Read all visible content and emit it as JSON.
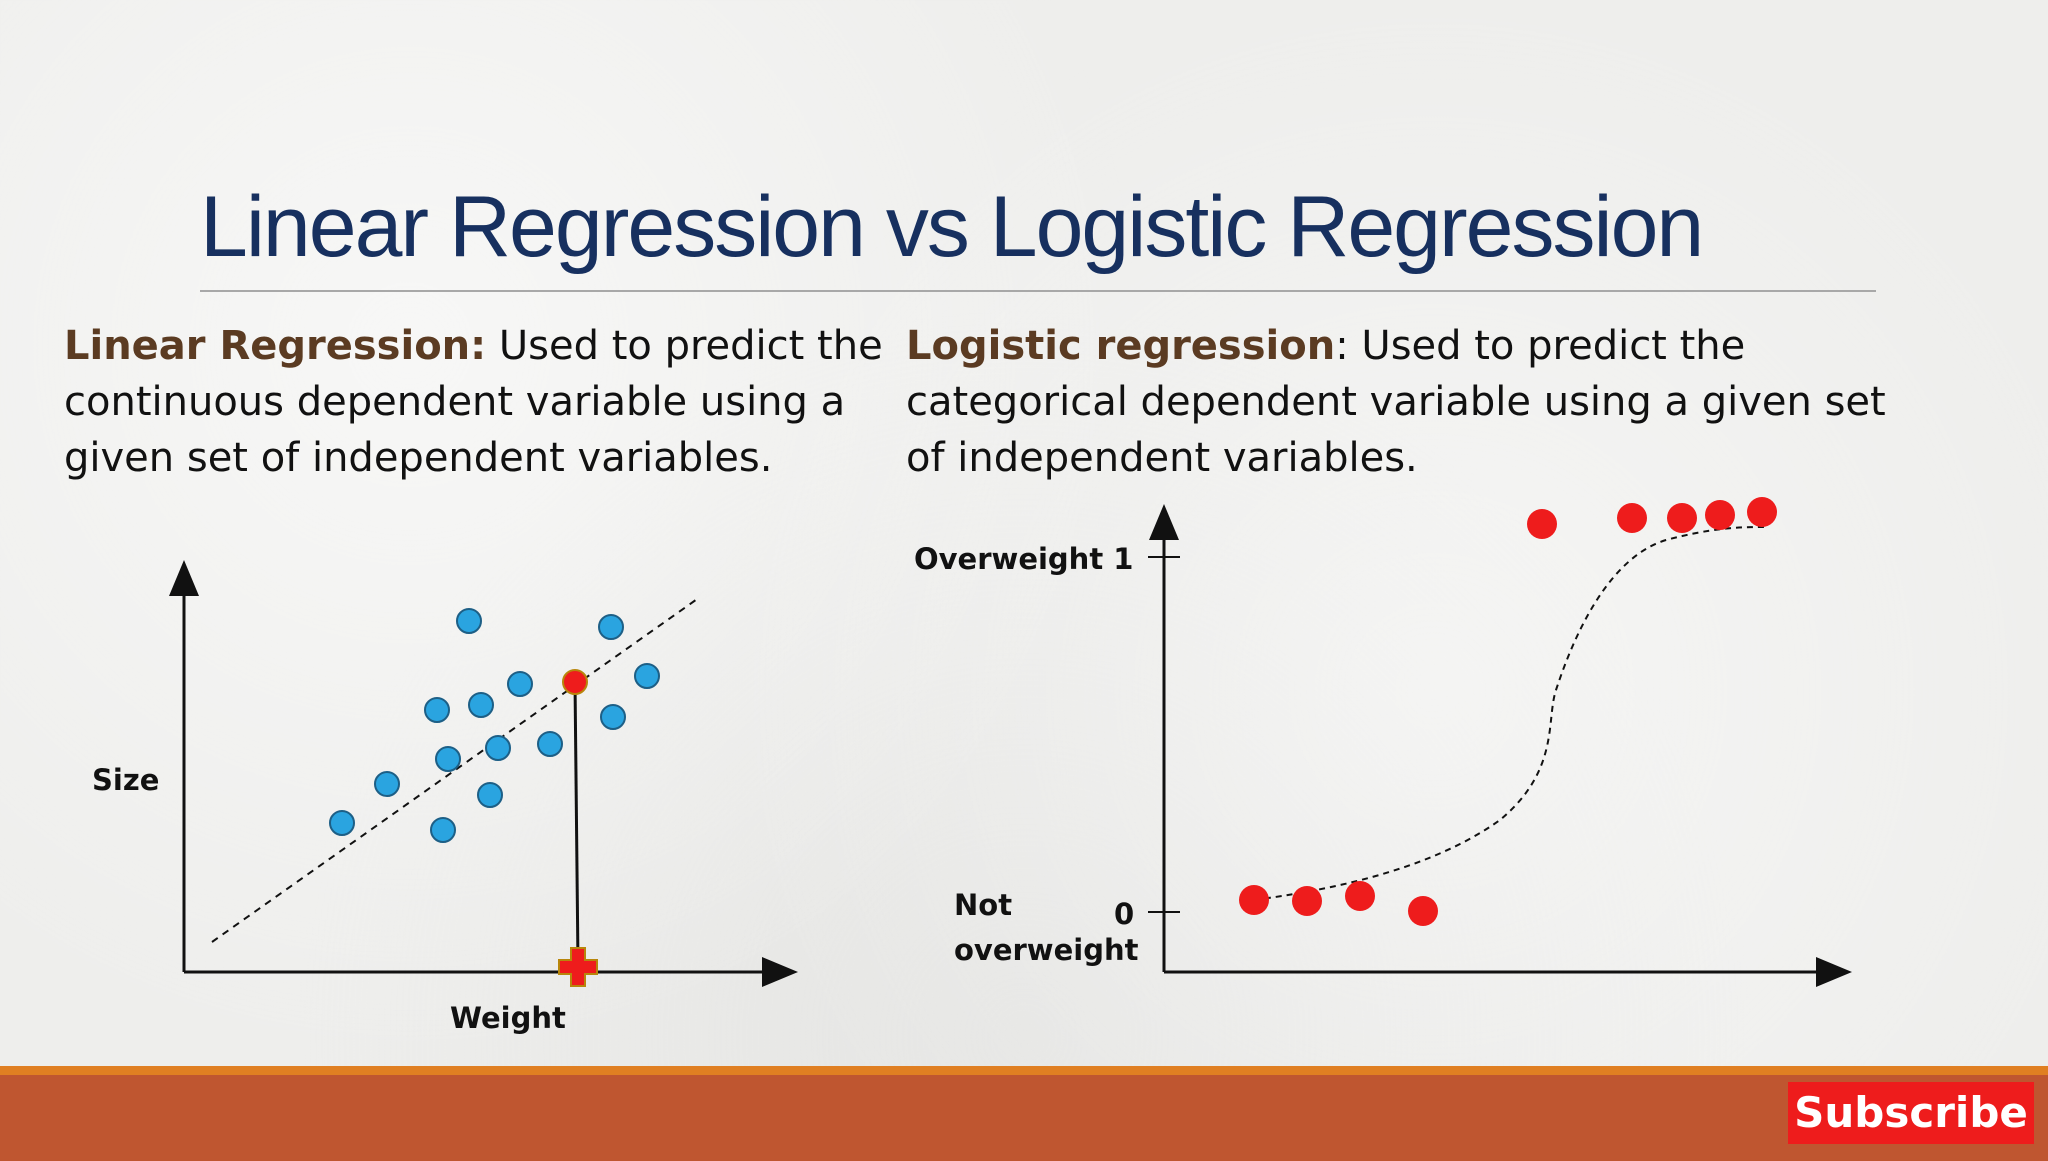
{
  "slide": {
    "title": "Linear Regression vs Logistic Regression"
  },
  "linear": {
    "term": "Linear Regression",
    "colon": ":",
    "description": " Used to predict the continuous dependent variable using a given set of independent variables.",
    "diagram": {
      "y_label": "Size",
      "x_label": "Weight",
      "point_color": "#2aa4e0",
      "highlight_color": "#ee1c1c"
    }
  },
  "logistic": {
    "term": "Logistic regression",
    "colon": ":",
    "description": " Used to predict the categorical dependent variable using a given set of independent variables.",
    "diagram": {
      "top_label": "Overweight 1",
      "bottom_label_line1": "Not",
      "bottom_label_line2": "overweight",
      "zero_label": "0",
      "point_color": "#ee1c1c"
    }
  },
  "footer": {
    "subscribe_label": "Subscribe",
    "bar_color": "#bf5630",
    "accent_color": "#e07f22"
  }
}
